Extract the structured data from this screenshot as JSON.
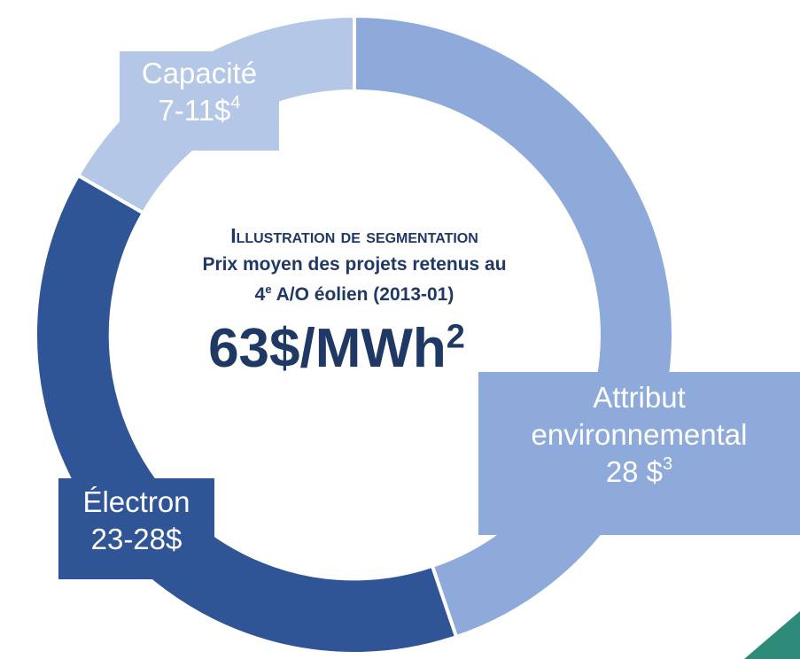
{
  "center": {
    "title": "Illustration de segmentation",
    "subtitle": "Prix moyen des projets retenus au",
    "round_number": "4",
    "round_suffix": "e",
    "round_text": " A/O éolien (2013-01)",
    "price": "63$/MWh",
    "price_note": "2"
  },
  "segments": [
    {
      "lines": [
        "Capacité"
      ],
      "amount": "7-11$",
      "note": "4"
    },
    {
      "lines": [
        "Attribut",
        "environnemental"
      ],
      "amount": "28 $",
      "note": "3"
    },
    {
      "lines": [
        "Électron"
      ],
      "amount": "23-28$",
      "note": ""
    }
  ]
}
